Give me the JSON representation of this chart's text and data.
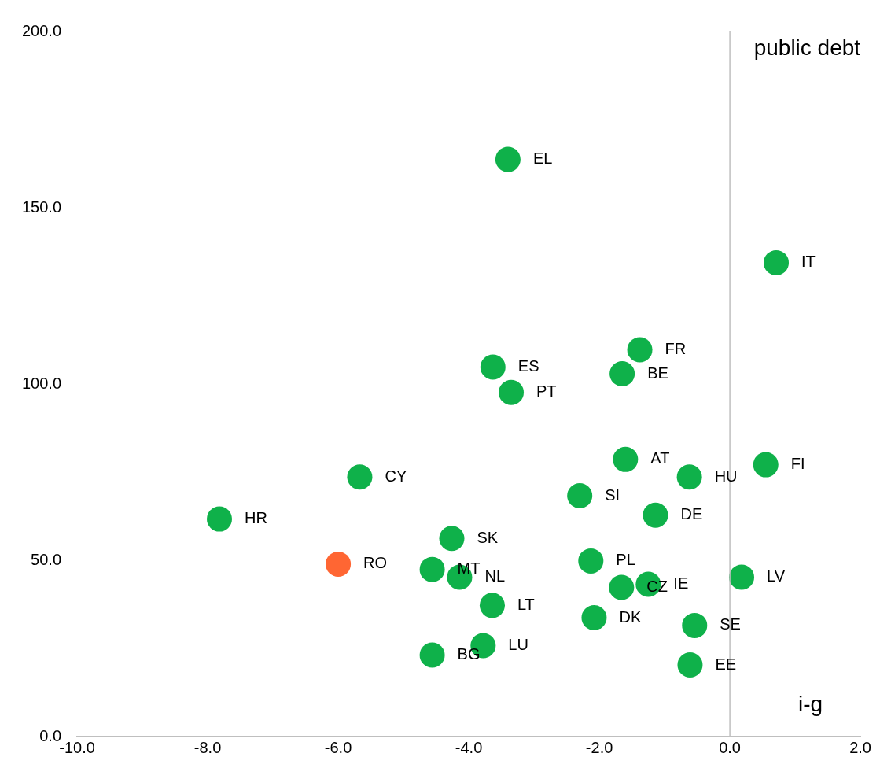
{
  "chart_data": {
    "type": "scatter",
    "xlabel": "i-g",
    "ylabel": "public debt",
    "x": [
      -3.4,
      0.71,
      -1.38,
      -3.63,
      -1.65,
      -3.35,
      -1.6,
      0.55,
      -0.62,
      -5.67,
      -2.3,
      -1.14,
      -7.82,
      -4.26,
      -2.13,
      -6.0,
      -4.56,
      -4.14,
      0.18,
      -1.66,
      -1.25,
      -3.64,
      -2.08,
      -0.54,
      -3.78,
      -4.56,
      -0.61
    ],
    "values": [
      163.7,
      134.4,
      109.7,
      104.8,
      102.9,
      97.6,
      78.6,
      77.1,
      73.6,
      73.6,
      68.3,
      62.8,
      61.7,
      56.2,
      49.8,
      48.9,
      47.4,
      45.2,
      45.2,
      42.3,
      43.2,
      37.2,
      33.7,
      31.5,
      25.8,
      23.1,
      20.3
    ],
    "colors": [
      "#0fb14a",
      "#0fb14a",
      "#0fb14a",
      "#0fb14a",
      "#0fb14a",
      "#0fb14a",
      "#0fb14a",
      "#0fb14a",
      "#0fb14a",
      "#0fb14a",
      "#0fb14a",
      "#0fb14a",
      "#0fb14a",
      "#0fb14a",
      "#0fb14a",
      "#ff6633",
      "#0fb14a",
      "#0fb14a",
      "#0fb14a",
      "#0fb14a",
      "#0fb14a",
      "#0fb14a",
      "#0fb14a",
      "#0fb14a",
      "#0fb14a",
      "#0fb14a",
      "#0fb14a"
    ],
    "annotations": [
      {
        "text": "EL",
        "x": -3.4,
        "y": 163.7
      },
      {
        "text": "IT",
        "x": 0.71,
        "y": 134.4
      },
      {
        "text": "FR",
        "x": -1.38,
        "y": 109.7
      },
      {
        "text": "ES",
        "x": -3.63,
        "y": 104.8
      },
      {
        "text": "BE",
        "x": -1.65,
        "y": 102.9
      },
      {
        "text": "PT",
        "x": -3.35,
        "y": 97.6
      },
      {
        "text": "AT",
        "x": -1.6,
        "y": 78.6
      },
      {
        "text": "FI",
        "x": 0.55,
        "y": 77.1
      },
      {
        "text": "HU",
        "x": -0.62,
        "y": 73.6
      },
      {
        "text": "CY",
        "x": -5.67,
        "y": 73.6
      },
      {
        "text": "SI",
        "x": -2.3,
        "y": 68.3
      },
      {
        "text": "DE",
        "x": -1.14,
        "y": 62.8
      },
      {
        "text": "HR",
        "x": -7.82,
        "y": 61.7
      },
      {
        "text": "SK",
        "x": -4.26,
        "y": 56.2
      },
      {
        "text": "PL",
        "x": -2.13,
        "y": 49.8
      },
      {
        "text": "RO",
        "x": -6.0,
        "y": 48.9
      },
      {
        "text": "MT",
        "x": -4.56,
        "y": 47.4
      },
      {
        "text": "NL",
        "x": -4.14,
        "y": 45.2
      },
      {
        "text": "LV",
        "x": 0.18,
        "y": 45.2
      },
      {
        "text": "CZ",
        "x": -1.66,
        "y": 42.3
      },
      {
        "text": "IE",
        "x": -1.25,
        "y": 43.2
      },
      {
        "text": "LT",
        "x": -3.64,
        "y": 37.2
      },
      {
        "text": "DK",
        "x": -2.08,
        "y": 33.7
      },
      {
        "text": "SE",
        "x": -0.54,
        "y": 31.5
      },
      {
        "text": "LU",
        "x": -3.78,
        "y": 25.8
      },
      {
        "text": "BG",
        "x": -4.56,
        "y": 23.1
      },
      {
        "text": "EE",
        "x": -0.61,
        "y": 20.3
      }
    ],
    "xlim": [
      -10,
      2
    ],
    "xticks": [
      {
        "value": -10,
        "label": "-10.0"
      },
      {
        "value": -8,
        "label": "-8.0"
      },
      {
        "value": -6,
        "label": "-6.0"
      },
      {
        "value": -4,
        "label": "-4.0"
      },
      {
        "value": -2,
        "label": "-2.0"
      },
      {
        "value": 0,
        "label": "0.0"
      },
      {
        "value": 2,
        "label": "2.0"
      }
    ],
    "ylim": [
      0,
      200
    ],
    "yticks": [
      {
        "value": 0,
        "label": "0.0"
      },
      {
        "value": 50,
        "label": "50.0"
      },
      {
        "value": 100,
        "label": "100.0"
      },
      {
        "value": 150,
        "label": "150.0"
      },
      {
        "value": 200,
        "label": "200.0"
      }
    ],
    "ref_lines": [
      {
        "axis": "x",
        "value": 0,
        "color": "#bfbfbf"
      }
    ],
    "grid": false,
    "legend": false,
    "marker": "circle"
  }
}
